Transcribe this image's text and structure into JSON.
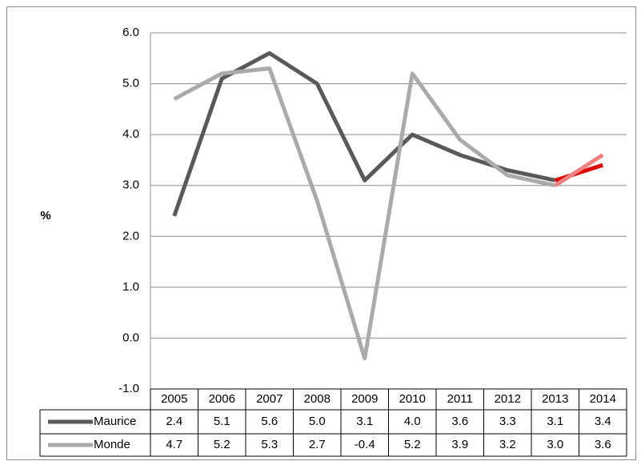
{
  "chart_data": {
    "type": "line",
    "y_label": "%",
    "categories": [
      "2005",
      "2006",
      "2007",
      "2008",
      "2009",
      "2010",
      "2011",
      "2012",
      "2013",
      "2014"
    ],
    "series": [
      {
        "name": "Maurice",
        "color": "#595959",
        "segment_colors": [
          "#595959",
          "#595959",
          "#595959",
          "#595959",
          "#595959",
          "#595959",
          "#595959",
          "#595959",
          "#e00000"
        ],
        "values": [
          2.4,
          5.1,
          5.6,
          5.0,
          3.1,
          4.0,
          3.6,
          3.3,
          3.1,
          3.4
        ],
        "value_labels": [
          "2.4",
          "5.1",
          "5.6",
          "5.0",
          "3.1",
          "4.0",
          "3.6",
          "3.3",
          "3.1",
          "3.4"
        ]
      },
      {
        "name": "Monde",
        "color": "#aaaaaa",
        "segment_colors": [
          "#aaaaaa",
          "#aaaaaa",
          "#aaaaaa",
          "#aaaaaa",
          "#aaaaaa",
          "#aaaaaa",
          "#aaaaaa",
          "#aaaaaa",
          "#f08080"
        ],
        "values": [
          4.7,
          5.2,
          5.3,
          2.7,
          -0.4,
          5.2,
          3.9,
          3.2,
          3.0,
          3.6
        ],
        "value_labels": [
          "4.7",
          "5.2",
          "5.3",
          "2.7",
          "-0.4",
          "5.2",
          "3.9",
          "3.2",
          "3.0",
          "3.6"
        ]
      }
    ],
    "ylim": [
      -1,
      6
    ],
    "yticks": [
      {
        "value": -1,
        "label": "-1.0"
      },
      {
        "value": 0,
        "label": "0.0"
      },
      {
        "value": 1,
        "label": "1.0"
      },
      {
        "value": 2,
        "label": "2.0"
      },
      {
        "value": 3,
        "label": "3.0"
      },
      {
        "value": 4,
        "label": "4.0"
      },
      {
        "value": 5,
        "label": "5.0"
      },
      {
        "value": 6,
        "label": "6.0"
      }
    ],
    "grid": true,
    "data_table": true
  }
}
